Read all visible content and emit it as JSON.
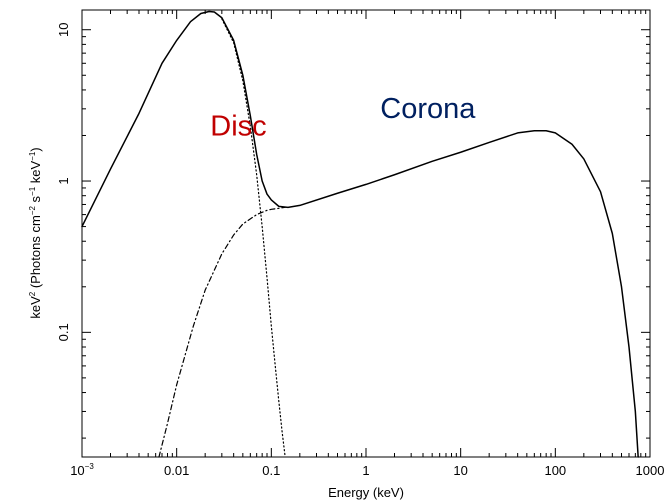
{
  "chart_data": {
    "type": "line",
    "xscale": "log",
    "yscale": "log",
    "xlim": [
      0.001,
      1000
    ],
    "ylim": [
      0.015,
      13.5
    ],
    "xlabel": "Energy (keV)",
    "ylabel_parts": [
      "keV",
      "2",
      " (Photons cm",
      "−2",
      " s",
      "−1",
      " keV",
      "−1",
      ")"
    ],
    "x_ticks": [
      {
        "value": 0.001,
        "base": "10",
        "exp": "−3"
      },
      {
        "value": 0.01,
        "label": "0.01"
      },
      {
        "value": 0.1,
        "label": "0.1"
      },
      {
        "value": 1,
        "label": "1"
      },
      {
        "value": 10,
        "label": "10"
      },
      {
        "value": 100,
        "label": "100"
      },
      {
        "value": 1000,
        "label": "1000"
      }
    ],
    "y_ticks": [
      {
        "value": 0.1,
        "label": "0.1"
      },
      {
        "value": 1,
        "label": "1"
      },
      {
        "value": 10,
        "label": "10"
      }
    ],
    "grid": false,
    "series": [
      {
        "style": "solid",
        "color": "#000000",
        "x": [
          0.001,
          0.002,
          0.004,
          0.007,
          0.01,
          0.014,
          0.018,
          0.022,
          0.025,
          0.03,
          0.04,
          0.05,
          0.06,
          0.07,
          0.08,
          0.09,
          0.1,
          0.12,
          0.15,
          0.2,
          0.5,
          1,
          2,
          5,
          10,
          20,
          40,
          60,
          80,
          100,
          150,
          200,
          300,
          400,
          500,
          600,
          700,
          750
        ],
        "y": [
          0.5,
          1.2,
          2.8,
          6.0,
          8.5,
          11.3,
          12.8,
          13.2,
          13.1,
          12.0,
          8.5,
          5.0,
          2.7,
          1.5,
          1.0,
          0.82,
          0.75,
          0.68,
          0.67,
          0.69,
          0.83,
          0.95,
          1.1,
          1.35,
          1.55,
          1.8,
          2.08,
          2.15,
          2.15,
          2.08,
          1.75,
          1.4,
          0.85,
          0.45,
          0.2,
          0.08,
          0.03,
          0.015
        ]
      },
      {
        "style": "dotted",
        "color": "#000000",
        "x": [
          0.03,
          0.04,
          0.05,
          0.06,
          0.07,
          0.08,
          0.09,
          0.1,
          0.11,
          0.12,
          0.13,
          0.14
        ],
        "y": [
          11.8,
          8.2,
          4.6,
          2.3,
          1.1,
          0.5,
          0.23,
          0.11,
          0.06,
          0.035,
          0.022,
          0.015
        ]
      },
      {
        "style": "dashdot",
        "color": "#000000",
        "x": [
          0.0065,
          0.008,
          0.01,
          0.015,
          0.02,
          0.03,
          0.04,
          0.05,
          0.07,
          0.09,
          0.1,
          0.12,
          0.14
        ],
        "y": [
          0.015,
          0.025,
          0.045,
          0.11,
          0.19,
          0.33,
          0.44,
          0.52,
          0.6,
          0.64,
          0.65,
          0.66,
          0.67
        ]
      }
    ],
    "annotations": [
      {
        "text": "Disc",
        "x": 0.045,
        "y": 2.0,
        "color": "#c00000"
      },
      {
        "text": "Corona",
        "x": 4.5,
        "y": 2.6,
        "color": "#002060"
      }
    ]
  }
}
